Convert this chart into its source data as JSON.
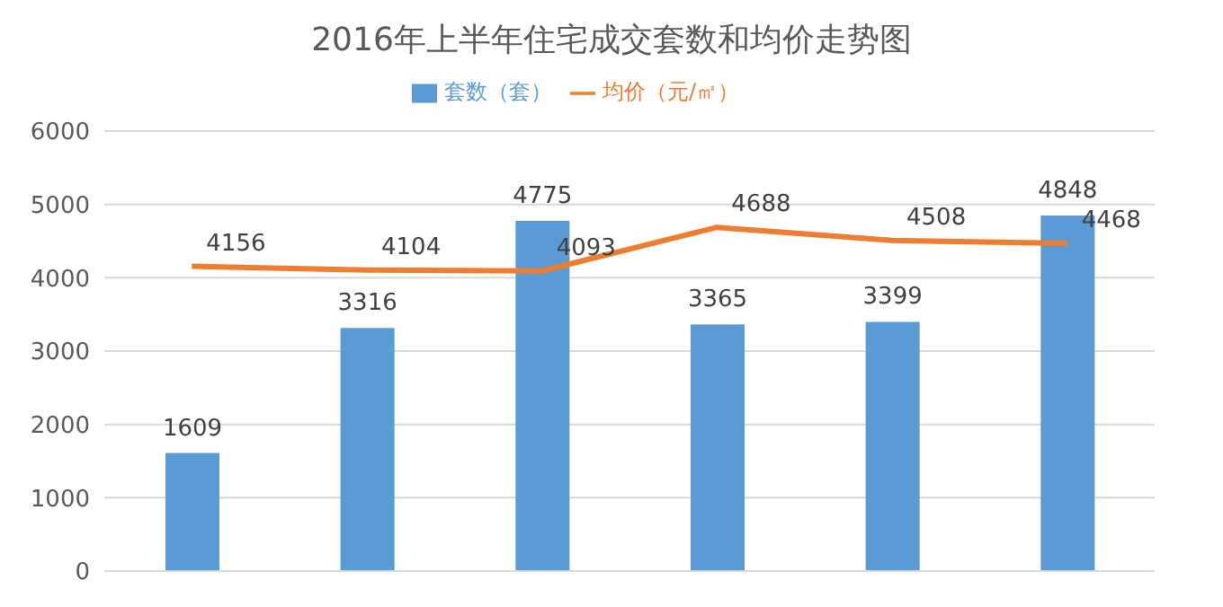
{
  "chart_data": {
    "type": "bar",
    "title": "2016年上半年住宅成交套数和均价走势图",
    "categories": [
      null,
      null,
      null,
      null,
      null,
      null
    ],
    "series": [
      {
        "name": "套数（套）",
        "color": "#5b9bd5",
        "values": [
          1609,
          3316,
          4775,
          3365,
          3399,
          4848
        ]
      },
      {
        "name": "均价（元/㎡）",
        "type": "line",
        "color": "#ed7d31",
        "values": [
          4156,
          4104,
          4093,
          4688,
          4508,
          4468
        ]
      }
    ],
    "ylim": [
      0,
      6000
    ],
    "yticks": [
      0,
      1000,
      2000,
      3000,
      4000,
      5000,
      6000
    ],
    "grid": "y",
    "legend": "top",
    "data_labels": true,
    "marker": "none",
    "line_style": "solid"
  }
}
